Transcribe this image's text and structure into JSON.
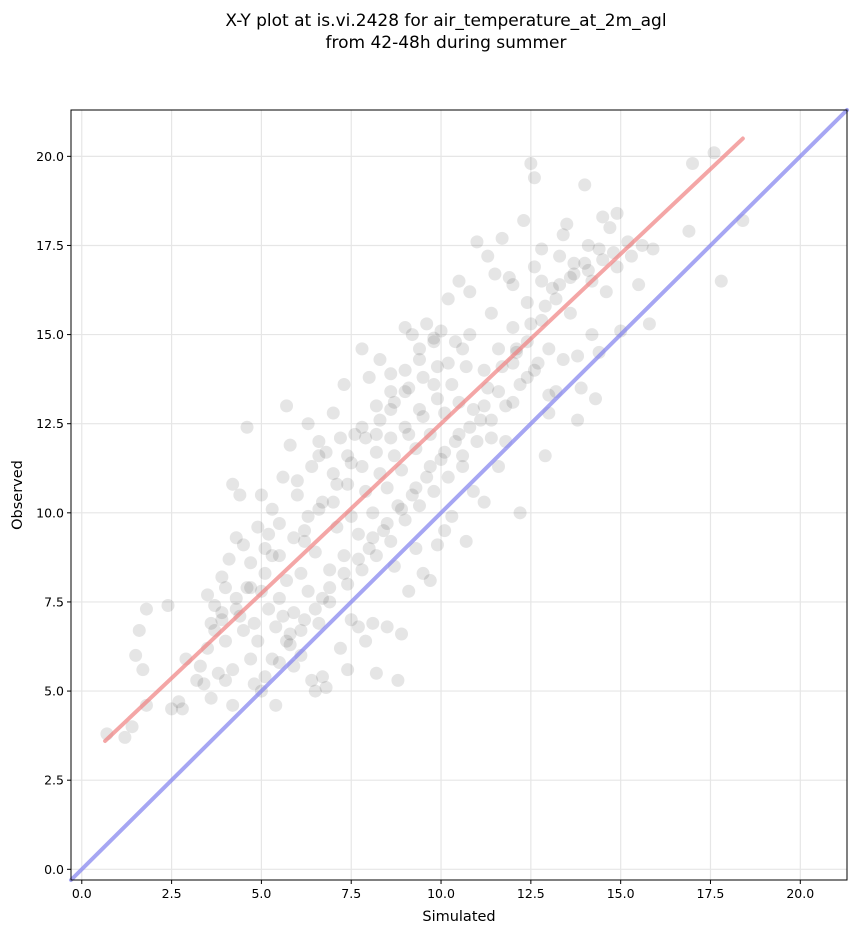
{
  "chart_data": {
    "type": "scatter",
    "title": [
      "X-Y plot at is.vi.2428 for air_temperature_at_2m_agl",
      "from 42-48h during summer"
    ],
    "xlabel": "Simulated",
    "ylabel": "Observed",
    "xlim": [
      -0.3,
      21.3
    ],
    "ylim": [
      -0.3,
      21.3
    ],
    "xticks": [
      0.0,
      2.5,
      5.0,
      7.5,
      10.0,
      12.5,
      15.0,
      17.5,
      20.0
    ],
    "xtick_labels": [
      "0.0",
      "2.5",
      "5.0",
      "7.5",
      "10.0",
      "12.5",
      "15.0",
      "17.5",
      "20.0"
    ],
    "yticks": [
      0.0,
      2.5,
      5.0,
      7.5,
      10.0,
      12.5,
      15.0,
      17.5,
      20.0
    ],
    "ytick_labels": [
      "0.0",
      "2.5",
      "5.0",
      "7.5",
      "10.0",
      "12.5",
      "15.0",
      "17.5",
      "20.0"
    ],
    "grid": true,
    "point_color": "#000000",
    "fit_line": {
      "x": [
        0.65,
        18.4
      ],
      "y": [
        3.6,
        20.5
      ],
      "color": "#f08080"
    },
    "identity_line": {
      "x": [
        -0.3,
        21.3
      ],
      "y": [
        -0.3,
        21.3
      ],
      "color": "#8080ee"
    },
    "points": [
      [
        0.7,
        3.8
      ],
      [
        1.2,
        3.7
      ],
      [
        1.4,
        4.0
      ],
      [
        1.5,
        6.0
      ],
      [
        1.6,
        6.7
      ],
      [
        1.7,
        5.6
      ],
      [
        1.8,
        7.3
      ],
      [
        1.8,
        4.6
      ],
      [
        2.4,
        7.4
      ],
      [
        2.5,
        4.5
      ],
      [
        2.7,
        4.7
      ],
      [
        2.8,
        4.5
      ],
      [
        2.9,
        5.9
      ],
      [
        3.2,
        5.3
      ],
      [
        3.3,
        5.7
      ],
      [
        3.4,
        5.2
      ],
      [
        3.5,
        7.7
      ],
      [
        3.5,
        6.2
      ],
      [
        3.6,
        4.8
      ],
      [
        3.7,
        6.7
      ],
      [
        3.8,
        5.5
      ],
      [
        3.9,
        7.0
      ],
      [
        4.0,
        7.9
      ],
      [
        4.0,
        5.3
      ],
      [
        4.2,
        5.6
      ],
      [
        4.2,
        4.6
      ],
      [
        4.3,
        7.3
      ],
      [
        4.5,
        6.7
      ],
      [
        4.6,
        12.4
      ],
      [
        4.7,
        5.9
      ],
      [
        4.8,
        5.2
      ],
      [
        4.9,
        6.4
      ],
      [
        5.0,
        5.0
      ],
      [
        5.1,
        5.4
      ],
      [
        5.2,
        9.4
      ],
      [
        5.3,
        8.8
      ],
      [
        5.4,
        4.6
      ],
      [
        5.5,
        5.8
      ],
      [
        5.6,
        11.0
      ],
      [
        5.7,
        13.0
      ],
      [
        5.8,
        6.3
      ],
      [
        5.9,
        5.7
      ],
      [
        6.0,
        10.5
      ],
      [
        6.1,
        6.0
      ],
      [
        6.2,
        9.2
      ],
      [
        6.3,
        12.5
      ],
      [
        6.4,
        5.3
      ],
      [
        6.5,
        5.0
      ],
      [
        6.6,
        11.6
      ],
      [
        6.7,
        5.4
      ],
      [
        6.8,
        5.1
      ],
      [
        6.9,
        7.5
      ],
      [
        7.0,
        12.8
      ],
      [
        7.2,
        6.2
      ],
      [
        7.3,
        13.6
      ],
      [
        7.4,
        5.6
      ],
      [
        7.5,
        7.0
      ],
      [
        7.6,
        12.2
      ],
      [
        7.7,
        6.8
      ],
      [
        7.8,
        14.6
      ],
      [
        7.9,
        6.4
      ],
      [
        8.0,
        13.8
      ],
      [
        8.1,
        6.9
      ],
      [
        8.2,
        5.5
      ],
      [
        8.3,
        14.3
      ],
      [
        8.5,
        6.8
      ],
      [
        8.6,
        13.9
      ],
      [
        8.7,
        8.5
      ],
      [
        8.8,
        5.3
      ],
      [
        8.9,
        6.6
      ],
      [
        9.0,
        15.2
      ],
      [
        9.1,
        7.8
      ],
      [
        9.2,
        15.0
      ],
      [
        9.3,
        9.0
      ],
      [
        9.4,
        14.6
      ],
      [
        9.5,
        8.3
      ],
      [
        9.6,
        15.3
      ],
      [
        9.7,
        8.1
      ],
      [
        9.8,
        14.8
      ],
      [
        9.9,
        9.1
      ],
      [
        10.0,
        15.1
      ],
      [
        10.1,
        9.5
      ],
      [
        10.2,
        16.0
      ],
      [
        10.3,
        9.9
      ],
      [
        10.5,
        16.5
      ],
      [
        10.6,
        11.3
      ],
      [
        10.7,
        9.2
      ],
      [
        10.8,
        16.2
      ],
      [
        10.9,
        10.6
      ],
      [
        11.0,
        17.6
      ],
      [
        11.1,
        12.6
      ],
      [
        11.2,
        10.3
      ],
      [
        11.3,
        17.2
      ],
      [
        11.4,
        12.1
      ],
      [
        11.5,
        16.7
      ],
      [
        11.6,
        11.3
      ],
      [
        11.7,
        17.7
      ],
      [
        11.8,
        12.0
      ],
      [
        11.9,
        16.6
      ],
      [
        12.0,
        13.1
      ],
      [
        12.1,
        14.5
      ],
      [
        12.2,
        10.0
      ],
      [
        12.3,
        18.2
      ],
      [
        12.4,
        13.8
      ],
      [
        12.5,
        19.8
      ],
      [
        12.6,
        19.4
      ],
      [
        12.7,
        14.2
      ],
      [
        12.8,
        17.4
      ],
      [
        12.9,
        11.6
      ],
      [
        13.0,
        12.8
      ],
      [
        13.1,
        16.3
      ],
      [
        13.2,
        13.4
      ],
      [
        13.3,
        17.2
      ],
      [
        13.4,
        14.3
      ],
      [
        13.5,
        18.1
      ],
      [
        13.6,
        15.6
      ],
      [
        13.7,
        16.7
      ],
      [
        13.8,
        12.6
      ],
      [
        13.9,
        13.5
      ],
      [
        14.0,
        19.2
      ],
      [
        14.1,
        17.5
      ],
      [
        14.2,
        16.5
      ],
      [
        14.3,
        13.2
      ],
      [
        14.4,
        14.5
      ],
      [
        14.5,
        18.3
      ],
      [
        14.6,
        16.2
      ],
      [
        14.7,
        18.0
      ],
      [
        14.8,
        17.3
      ],
      [
        14.9,
        18.4
      ],
      [
        15.0,
        15.1
      ],
      [
        15.3,
        17.2
      ],
      [
        15.6,
        17.5
      ],
      [
        15.8,
        15.3
      ],
      [
        15.9,
        17.4
      ],
      [
        16.9,
        17.9
      ],
      [
        17.0,
        19.8
      ],
      [
        17.6,
        20.1
      ],
      [
        17.8,
        16.5
      ],
      [
        18.4,
        18.2
      ],
      [
        5.5,
        7.6
      ],
      [
        5.7,
        8.1
      ],
      [
        5.9,
        7.2
      ],
      [
        6.1,
        8.3
      ],
      [
        6.3,
        7.8
      ],
      [
        6.5,
        8.9
      ],
      [
        6.7,
        7.6
      ],
      [
        6.9,
        8.4
      ],
      [
        7.1,
        9.6
      ],
      [
        7.3,
        8.8
      ],
      [
        7.5,
        9.9
      ],
      [
        7.7,
        9.4
      ],
      [
        7.9,
        10.6
      ],
      [
        8.1,
        10.0
      ],
      [
        8.3,
        11.1
      ],
      [
        8.5,
        10.7
      ],
      [
        8.7,
        11.6
      ],
      [
        8.9,
        11.2
      ],
      [
        9.1,
        12.2
      ],
      [
        9.3,
        11.8
      ],
      [
        9.5,
        12.7
      ],
      [
        9.7,
        12.2
      ],
      [
        9.9,
        13.2
      ],
      [
        10.1,
        12.8
      ],
      [
        10.3,
        13.6
      ],
      [
        10.5,
        13.1
      ],
      [
        10.7,
        14.1
      ],
      [
        8.2,
        12.2
      ],
      [
        8.6,
        12.9
      ],
      [
        9.0,
        13.4
      ],
      [
        4.5,
        9.1
      ],
      [
        4.7,
        8.6
      ],
      [
        4.9,
        9.6
      ],
      [
        5.1,
        9.0
      ],
      [
        5.3,
        10.1
      ],
      [
        5.5,
        9.7
      ],
      [
        6.0,
        10.9
      ],
      [
        6.4,
        11.3
      ],
      [
        6.8,
        11.7
      ],
      [
        7.2,
        12.1
      ],
      [
        4.4,
        7.1
      ],
      [
        4.6,
        7.9
      ],
      [
        4.8,
        6.9
      ],
      [
        5.0,
        7.8
      ],
      [
        5.2,
        7.3
      ],
      [
        5.4,
        6.8
      ],
      [
        5.6,
        7.1
      ],
      [
        5.8,
        6.6
      ],
      [
        6.2,
        7.0
      ],
      [
        6.6,
        6.9
      ],
      [
        7.4,
        8.0
      ],
      [
        7.8,
        8.4
      ],
      [
        8.2,
        8.8
      ],
      [
        8.6,
        9.2
      ],
      [
        9.0,
        9.8
      ],
      [
        9.4,
        10.2
      ],
      [
        9.8,
        10.6
      ],
      [
        10.2,
        11.0
      ],
      [
        10.6,
        11.6
      ],
      [
        11.0,
        12.0
      ],
      [
        11.4,
        12.6
      ],
      [
        11.8,
        13.0
      ],
      [
        12.2,
        13.6
      ],
      [
        12.6,
        14.0
      ],
      [
        13.0,
        14.6
      ],
      [
        11.2,
        14.0
      ],
      [
        11.6,
        14.6
      ],
      [
        12.0,
        15.2
      ],
      [
        12.4,
        15.9
      ],
      [
        12.8,
        16.5
      ],
      [
        7.0,
        10.3
      ],
      [
        7.4,
        10.8
      ],
      [
        7.8,
        11.3
      ],
      [
        8.2,
        11.7
      ],
      [
        8.6,
        12.1
      ],
      [
        9.0,
        12.4
      ],
      [
        9.4,
        12.9
      ],
      [
        9.8,
        13.6
      ],
      [
        10.2,
        14.2
      ],
      [
        10.6,
        14.6
      ],
      [
        6.2,
        9.5
      ],
      [
        6.6,
        10.1
      ],
      [
        7.0,
        11.1
      ],
      [
        7.4,
        11.6
      ],
      [
        7.8,
        12.4
      ],
      [
        8.2,
        13.0
      ],
      [
        8.6,
        13.4
      ],
      [
        9.0,
        14.0
      ],
      [
        9.4,
        14.3
      ],
      [
        9.8,
        14.9
      ],
      [
        3.9,
        8.2
      ],
      [
        4.1,
        8.7
      ],
      [
        4.3,
        9.3
      ],
      [
        3.7,
        7.4
      ],
      [
        4.0,
        6.4
      ],
      [
        4.4,
        10.5
      ],
      [
        4.2,
        10.8
      ],
      [
        5.0,
        10.5
      ],
      [
        5.8,
        11.9
      ],
      [
        6.6,
        12.0
      ],
      [
        8.0,
        9.0
      ],
      [
        8.4,
        9.5
      ],
      [
        8.8,
        10.2
      ],
      [
        9.2,
        10.5
      ],
      [
        9.6,
        11.0
      ],
      [
        10.0,
        11.5
      ],
      [
        10.4,
        12.0
      ],
      [
        10.8,
        12.4
      ],
      [
        11.2,
        13.0
      ],
      [
        11.6,
        13.4
      ],
      [
        12.0,
        14.2
      ],
      [
        12.4,
        14.8
      ],
      [
        12.8,
        15.4
      ],
      [
        13.2,
        16.0
      ],
      [
        13.6,
        16.6
      ],
      [
        14.0,
        17.0
      ],
      [
        14.4,
        17.4
      ],
      [
        13.4,
        17.8
      ],
      [
        12.6,
        16.9
      ],
      [
        12.0,
        16.4
      ],
      [
        11.4,
        15.6
      ],
      [
        10.8,
        15.0
      ],
      [
        10.4,
        14.8
      ],
      [
        9.9,
        14.1
      ],
      [
        9.5,
        13.8
      ],
      [
        9.1,
        13.5
      ],
      [
        8.7,
        13.1
      ],
      [
        8.3,
        12.6
      ],
      [
        7.9,
        12.1
      ],
      [
        7.5,
        11.4
      ],
      [
        7.1,
        10.8
      ],
      [
        6.7,
        10.3
      ],
      [
        6.3,
        9.9
      ],
      [
        5.9,
        9.3
      ],
      [
        5.5,
        8.8
      ],
      [
        5.1,
        8.3
      ],
      [
        4.7,
        7.9
      ],
      [
        4.3,
        7.6
      ],
      [
        3.9,
        7.2
      ],
      [
        3.6,
        6.9
      ],
      [
        5.3,
        5.9
      ],
      [
        5.7,
        6.4
      ],
      [
        6.1,
        6.7
      ],
      [
        6.5,
        7.3
      ],
      [
        6.9,
        7.9
      ],
      [
        7.3,
        8.3
      ],
      [
        7.7,
        8.7
      ],
      [
        8.1,
        9.3
      ],
      [
        8.5,
        9.7
      ],
      [
        8.9,
        10.1
      ],
      [
        9.3,
        10.7
      ],
      [
        9.7,
        11.3
      ],
      [
        10.1,
        11.7
      ],
      [
        10.5,
        12.2
      ],
      [
        10.9,
        12.9
      ],
      [
        11.3,
        13.5
      ],
      [
        11.7,
        14.1
      ],
      [
        12.1,
        14.6
      ],
      [
        12.5,
        15.3
      ],
      [
        12.9,
        15.8
      ],
      [
        13.3,
        16.4
      ],
      [
        13.7,
        17.0
      ],
      [
        14.1,
        16.8
      ],
      [
        14.5,
        17.1
      ],
      [
        14.9,
        16.9
      ],
      [
        15.2,
        17.6
      ],
      [
        15.5,
        16.4
      ],
      [
        14.2,
        15.0
      ],
      [
        13.8,
        14.4
      ],
      [
        13.0,
        13.3
      ]
    ]
  }
}
